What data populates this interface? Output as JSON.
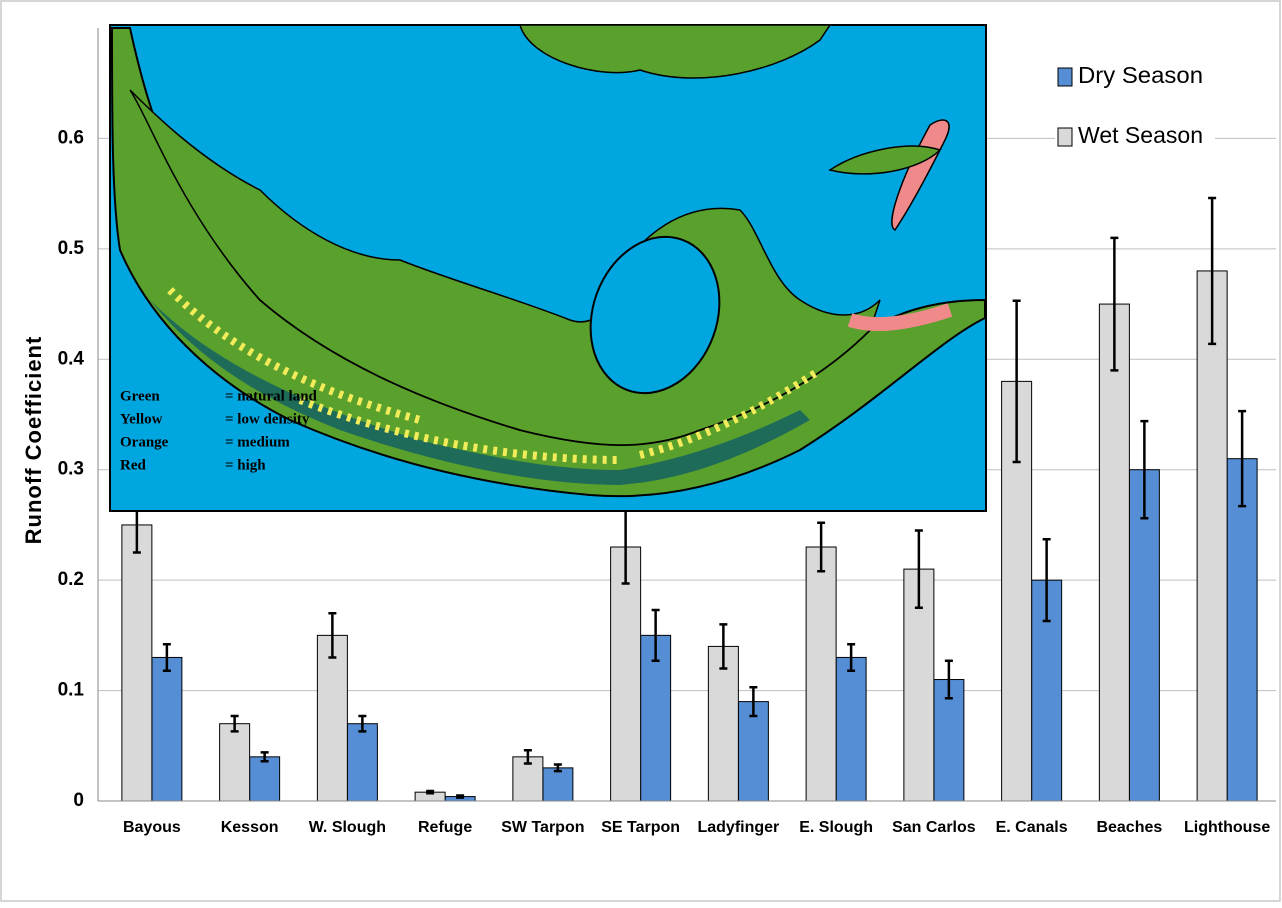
{
  "chart_data": {
    "type": "bar",
    "y_label": "Runoff Coefficient",
    "categories": [
      "Bayous",
      "Kesson",
      "W. Slough",
      "Refuge",
      "SW Tarpon",
      "SE Tarpon",
      "Ladyfinger",
      "E. Slough",
      "San Carlos",
      "E. Canals",
      "Beaches",
      "Lighthouse"
    ],
    "series": [
      {
        "name": "Dry Season",
        "color": "#558ed5",
        "values": [
          0.13,
          0.04,
          0.07,
          0.004,
          0.03,
          0.15,
          0.09,
          0.13,
          0.11,
          0.2,
          0.3,
          0.31
        ],
        "errors": [
          0.012,
          0.004,
          0.007,
          0.001,
          0.003,
          0.023,
          0.013,
          0.012,
          0.017,
          0.037,
          0.044,
          0.043
        ]
      },
      {
        "name": "Wet Season",
        "color": "#d9d9d9",
        "values": [
          0.25,
          0.07,
          0.15,
          0.008,
          0.04,
          0.23,
          0.14,
          0.23,
          0.21,
          0.38,
          0.45,
          0.48
        ],
        "errors": [
          0.025,
          0.007,
          0.02,
          0.001,
          0.006,
          0.033,
          0.02,
          0.022,
          0.035,
          0.073,
          0.06,
          0.066
        ]
      }
    ],
    "ylim": [
      0,
      0.7
    ],
    "yticks": [
      0,
      0.1,
      0.2,
      0.3,
      0.4,
      0.5,
      0.6
    ],
    "grid": true,
    "legend": "top-right",
    "inset_legend": [
      {
        "color": "Green",
        "meaning": "= natural land"
      },
      {
        "color": "Yellow",
        "meaning": "= low density"
      },
      {
        "color": "Orange",
        "meaning": "= medium"
      },
      {
        "color": "Red",
        "meaning": "= high"
      }
    ]
  }
}
